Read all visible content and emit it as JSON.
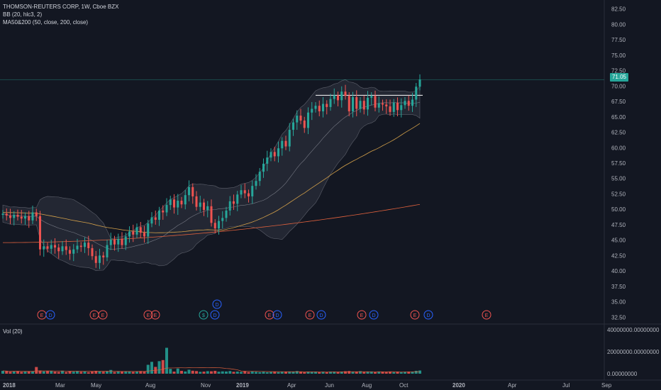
{
  "legend": {
    "symbol": "THOMSON-REUTERS CORP, 1W, Cboe BZX",
    "bb": "BB (20, hlc3, 2)",
    "ma": "MA50&200 (50, close, 200, close)"
  },
  "volume": {
    "label": "Vol (20)"
  },
  "last_price": "71.05",
  "colors": {
    "background": "#131722",
    "up": "#26a69a",
    "down": "#ef5350",
    "bb_fill": "#2a2e39",
    "ma50": "#d4a14a",
    "ma200": "#e0613d",
    "price_line": "#26a69a"
  },
  "earnings_markers": [
    "E",
    "D",
    "E",
    "E",
    "E",
    "E",
    "$",
    "D",
    "E",
    "D",
    "E",
    "D",
    "E",
    "D",
    "E",
    "D",
    "E"
  ],
  "chart_data": {
    "type": "candlestick",
    "price_axis": {
      "ticks": [
        "82.50",
        "80.00",
        "77.50",
        "75.00",
        "72.50",
        "70.00",
        "67.50",
        "65.00",
        "62.50",
        "60.00",
        "57.50",
        "55.00",
        "52.50",
        "50.00",
        "47.50",
        "45.00",
        "42.50",
        "40.00",
        "37.50",
        "35.00",
        "32.50"
      ],
      "range": [
        31.5,
        83.5
      ]
    },
    "volume_axis": {
      "ticks": [
        "40000000.00000000",
        "20000000.00000000",
        "0.00000000"
      ],
      "range": [
        0,
        42000000
      ]
    },
    "time_axis": [
      "2018",
      "Mar",
      "May",
      "Aug",
      "Nov",
      "2019",
      "Apr",
      "Jun",
      "Aug",
      "Oct",
      "2020",
      "Apr",
      "Jul",
      "Sep"
    ],
    "horizontal_line": 68.5,
    "closes": [
      49.3,
      49.0,
      48.6,
      49.1,
      48.8,
      48.5,
      48.9,
      48.2,
      49.5,
      48.9,
      43.5,
      44.0,
      43.6,
      44.2,
      43.8,
      43.2,
      44.0,
      43.4,
      42.8,
      43.5,
      44.1,
      43.9,
      44.6,
      43.7,
      42.4,
      41.3,
      42.5,
      42.2,
      44.2,
      45.1,
      44.3,
      45.2,
      44.2,
      45.6,
      46.4,
      45.9,
      47.1,
      46.2,
      45.6,
      47.7,
      48.7,
      48.3,
      49.8,
      49.5,
      50.7,
      51.6,
      50.3,
      51.4,
      50.8,
      52.3,
      53.6,
      52.1,
      50.4,
      51.1,
      49.9,
      50.5,
      47.8,
      46.9,
      48.1,
      48.6,
      49.8,
      51.3,
      50.9,
      52.4,
      53.1,
      52.6,
      52.1,
      53.8,
      54.6,
      56.1,
      57.4,
      58.4,
      59.3,
      58.6,
      59.9,
      61.1,
      60.2,
      62.9,
      64.1,
      65.2,
      64.4,
      63.2,
      65.7,
      66.3,
      66.8,
      65.9,
      67.1,
      66.6,
      67.9,
      68.5,
      67.7,
      69.1,
      68.4,
      65.9,
      68.2,
      66.3,
      67.6,
      66.2,
      68.1,
      68.4,
      66.5,
      67.2,
      67.0,
      66.7,
      65.8,
      67.3,
      66.1,
      66.9,
      67.6,
      66.8,
      67.8,
      69.9,
      71.05
    ],
    "volumes": [
      2.6,
      2.3,
      1.8,
      2.0,
      2.4,
      1.6,
      1.9,
      2.2,
      2.0,
      6.1,
      2.9,
      2.1,
      2.6,
      2.4,
      1.9,
      1.6,
      2.7,
      1.5,
      2.1,
      1.8,
      2.3,
      1.7,
      2.0,
      1.4,
      1.9,
      2.6,
      2.1,
      1.8,
      2.2,
      3.4,
      1.5,
      2.1,
      1.9,
      2.3,
      2.0,
      1.7,
      1.9,
      2.4,
      2.2,
      8.1,
      10.8,
      6.2,
      11.4,
      12.4,
      23.6,
      4.4,
      1.9,
      4.7,
      2.6,
      2.0,
      3.6,
      2.7,
      2.4,
      1.7,
      1.9,
      2.3,
      2.2,
      2.6,
      1.8,
      2.1,
      2.0,
      2.4,
      1.7,
      1.9,
      1.6,
      2.2,
      1.5,
      1.9,
      1.6,
      1.4,
      1.8,
      1.3,
      1.5,
      1.7,
      1.4,
      1.9,
      1.6,
      2.0,
      1.8,
      2.4,
      1.7,
      1.3,
      1.9,
      1.5,
      1.6,
      1.4,
      1.7,
      1.3,
      1.8,
      1.9,
      1.5,
      1.7,
      2.2,
      2.4,
      1.9,
      1.6,
      2.3,
      1.5,
      1.8,
      2.0,
      1.4,
      1.7,
      1.6,
      1.5,
      1.9,
      1.4,
      1.6,
      1.3,
      1.5,
      1.7,
      1.9,
      2.6,
      2.9
    ]
  }
}
